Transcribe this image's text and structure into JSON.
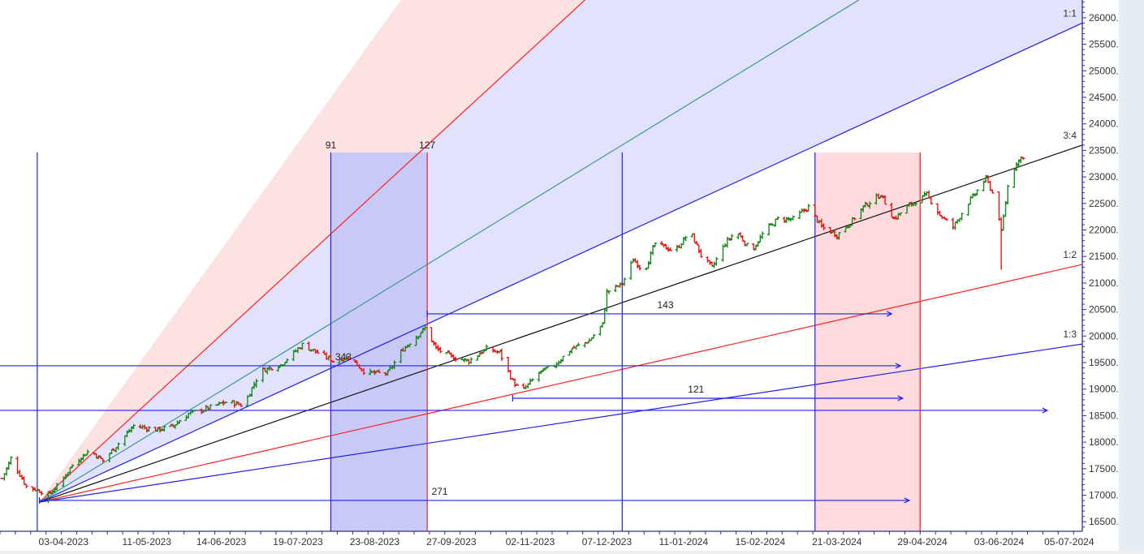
{
  "chart_data": {
    "type": "ohlc",
    "title": "",
    "xlabel": "",
    "ylabel": "",
    "xlim": [
      "2023-03-05",
      "2024-07-11"
    ],
    "ylim": [
      16320,
      26335
    ],
    "grid": false,
    "y_ticks": [
      "16500.00",
      "17000.00",
      "17500.00",
      "18000.00",
      "18500.00",
      "19000.00",
      "19500.00",
      "20000.00",
      "20500.00",
      "21000.00",
      "21500.00",
      "22000.00",
      "22500.00",
      "23000.00",
      "23500.00",
      "24000.00",
      "24500.00",
      "25000.00",
      "25500.00",
      "26000.00"
    ],
    "x_ticks": [
      {
        "date": "2023-03-01",
        "label": "023"
      },
      {
        "date": "2023-04-03",
        "label": "03-04-2023"
      },
      {
        "date": "2023-05-11",
        "label": "11-05-2023"
      },
      {
        "date": "2023-06-14",
        "label": "14-06-2023"
      },
      {
        "date": "2023-07-19",
        "label": "19-07-2023"
      },
      {
        "date": "2023-08-23",
        "label": "23-08-2023"
      },
      {
        "date": "2023-09-27",
        "label": "27-09-2023"
      },
      {
        "date": "2023-11-02",
        "label": "02-11-2023"
      },
      {
        "date": "2023-12-07",
        "label": "07-12-2023"
      },
      {
        "date": "2024-01-11",
        "label": "11-01-2024"
      },
      {
        "date": "2024-02-15",
        "label": "15-02-2024"
      },
      {
        "date": "2024-03-21",
        "label": "21-03-2024"
      },
      {
        "date": "2024-04-29",
        "label": "29-04-2024"
      },
      {
        "date": "2024-06-03",
        "label": "03-06-2024"
      },
      {
        "date": "2024-07-05",
        "label": "05-07-2024"
      }
    ],
    "up_color": "#1a8a1a",
    "down_color": "#ee1111",
    "closes": [
      {
        "date": "2023-03-06",
        "close": 17315
      },
      {
        "date": "2023-03-10",
        "close": 17697
      },
      {
        "date": "2023-03-17",
        "close": 17162
      },
      {
        "date": "2023-03-23",
        "close": 17086
      },
      {
        "date": "2023-03-27",
        "close": 17009,
        "low": 16850
      },
      {
        "date": "2023-03-31",
        "close": 17162
      },
      {
        "date": "2023-04-08",
        "close": 17621
      },
      {
        "date": "2023-04-15",
        "close": 17850
      },
      {
        "date": "2023-04-21",
        "close": 17650
      },
      {
        "date": "2023-04-27",
        "close": 17927
      },
      {
        "date": "2023-05-05",
        "close": 18309
      },
      {
        "date": "2023-05-16",
        "close": 18232
      },
      {
        "date": "2023-05-23",
        "close": 18309
      },
      {
        "date": "2023-05-30",
        "close": 18538
      },
      {
        "date": "2023-06-06",
        "close": 18615
      },
      {
        "date": "2023-06-17",
        "close": 18768
      },
      {
        "date": "2023-06-24",
        "close": 18691
      },
      {
        "date": "2023-07-02",
        "close": 19350
      },
      {
        "date": "2023-07-11",
        "close": 19456
      },
      {
        "date": "2023-07-21",
        "close": 19838
      },
      {
        "date": "2023-07-28",
        "close": 19685
      },
      {
        "date": "2023-08-04",
        "close": 19532
      },
      {
        "date": "2023-08-11",
        "close": 19609
      },
      {
        "date": "2023-08-19",
        "close": 19303
      },
      {
        "date": "2023-08-29",
        "close": 19303
      },
      {
        "date": "2023-09-05",
        "close": 19761
      },
      {
        "date": "2023-09-15",
        "close": 20150
      },
      {
        "date": "2023-09-20",
        "close": 19761
      },
      {
        "date": "2023-09-27",
        "close": 19609
      },
      {
        "date": "2023-10-05",
        "close": 19532
      },
      {
        "date": "2023-10-13",
        "close": 19761
      },
      {
        "date": "2023-10-19",
        "close": 19685
      },
      {
        "date": "2023-10-25",
        "close": 19150
      },
      {
        "date": "2023-10-29",
        "close": 18951,
        "low": 18840
      },
      {
        "date": "2023-11-06",
        "close": 19303
      },
      {
        "date": "2023-11-13",
        "close": 19456
      },
      {
        "date": "2023-11-21",
        "close": 19761
      },
      {
        "date": "2023-11-29",
        "close": 19914
      },
      {
        "date": "2023-12-05",
        "close": 20220
      },
      {
        "date": "2023-12-07",
        "close": 20832
      },
      {
        "date": "2023-12-14",
        "close": 20985
      },
      {
        "date": "2023-12-19",
        "close": 21443
      },
      {
        "date": "2023-12-24",
        "close": 21214
      },
      {
        "date": "2023-12-29",
        "close": 21749
      },
      {
        "date": "2024-01-07",
        "close": 21596
      },
      {
        "date": "2024-01-14",
        "close": 21979
      },
      {
        "date": "2024-01-19",
        "close": 21520
      },
      {
        "date": "2024-01-24",
        "close": 21290
      },
      {
        "date": "2024-01-30",
        "close": 21749
      },
      {
        "date": "2024-02-04",
        "close": 21979
      },
      {
        "date": "2024-02-11",
        "close": 21596
      },
      {
        "date": "2024-02-17",
        "close": 21979
      },
      {
        "date": "2024-02-23",
        "close": 22208
      },
      {
        "date": "2024-03-01",
        "close": 22208
      },
      {
        "date": "2024-03-08",
        "close": 22437
      },
      {
        "date": "2024-03-14",
        "close": 22055
      },
      {
        "date": "2024-03-21",
        "close": 21902
      },
      {
        "date": "2024-03-27",
        "close": 22131
      },
      {
        "date": "2024-04-02",
        "close": 22437
      },
      {
        "date": "2024-04-10",
        "close": 22667
      },
      {
        "date": "2024-04-16",
        "close": 22208
      },
      {
        "date": "2024-04-22",
        "close": 22437
      },
      {
        "date": "2024-05-01",
        "close": 22667
      },
      {
        "date": "2024-05-07",
        "close": 22284
      },
      {
        "date": "2024-05-13",
        "close": 22055
      },
      {
        "date": "2024-05-20",
        "close": 22514
      },
      {
        "date": "2024-05-28",
        "close": 22972
      },
      {
        "date": "2024-06-02",
        "close": 22514
      },
      {
        "date": "2024-06-04",
        "close": 21950,
        "low": 21250
      },
      {
        "date": "2024-06-07",
        "close": 22820
      },
      {
        "date": "2024-06-11",
        "close": 23278
      },
      {
        "date": "2024-06-16",
        "close": 23462
      }
    ],
    "gann_fan": {
      "origin": {
        "date": "2023-03-23",
        "price": 16870
      },
      "zones": [
        {
          "between": [
            "2023-09-04",
            "2023-11-27"
          ],
          "at_price": 26335,
          "color": "#fde2e2"
        },
        {
          "between": [
            "2023-11-27",
            "1:1"
          ],
          "color": "#e2e2fc"
        }
      ],
      "lines": [
        {
          "label": "",
          "through": {
            "date": "2023-11-27",
            "price": 26335
          },
          "color": "#ff2020"
        },
        {
          "label": "",
          "through": {
            "date": "2024-03-31",
            "price": 26335
          },
          "color": "#3a9a8a"
        },
        {
          "label": "1:1",
          "through": {
            "date": "2024-07-11",
            "price": 25900
          },
          "color": "#2020ee"
        },
        {
          "label": "3:4",
          "through": {
            "date": "2024-07-11",
            "price": 23600
          },
          "color": "#111111"
        },
        {
          "label": "1:2",
          "through": {
            "date": "2024-07-11",
            "price": 21350
          },
          "color": "#ff2020"
        },
        {
          "label": "1:3",
          "through": {
            "date": "2024-07-11",
            "price": 19850
          },
          "color": "#2020ee"
        }
      ]
    },
    "time_cycles": [
      {
        "date": "2023-03-22",
        "color": "#2020ee",
        "label": ""
      },
      {
        "date": "2023-08-03",
        "color": "#2020ee",
        "label": "91"
      },
      {
        "date": "2023-09-16",
        "color": "#ff2020",
        "label": "127"
      },
      {
        "date": "2023-12-14",
        "color": "#2020ee",
        "label": ""
      },
      {
        "date": "2024-03-11",
        "color": "#2020ee",
        "label": ""
      },
      {
        "date": "2024-04-28",
        "color": "#ff2020",
        "label": ""
      }
    ],
    "cycle_top_price": 23462,
    "shaded_ranges": [
      {
        "from": "2023-08-03",
        "to": "2023-09-16",
        "color": "#c9c9f7"
      },
      {
        "from": "2024-03-11",
        "to": "2024-04-28",
        "color": "#fcdadd"
      }
    ],
    "arrows": [
      {
        "label": "343",
        "price": 19440,
        "from": "2023-03-05",
        "to": "2024-04-19",
        "label_at": "2023-08-05"
      },
      {
        "label": "",
        "price": 18599,
        "from": "2023-03-05",
        "to": "2024-06-25",
        "label_at": ""
      },
      {
        "label": "143",
        "price": 20419,
        "from": "2023-09-16",
        "to": "2024-04-15",
        "label_at": "2023-12-30"
      },
      {
        "label": "121",
        "price": 18828,
        "from": "2023-10-25",
        "to": "2024-04-20",
        "label_at": "2024-01-13"
      },
      {
        "label": "271",
        "price": 16902,
        "from": "2023-03-23",
        "to": "2024-04-23",
        "label_at": "2023-09-18"
      }
    ]
  }
}
